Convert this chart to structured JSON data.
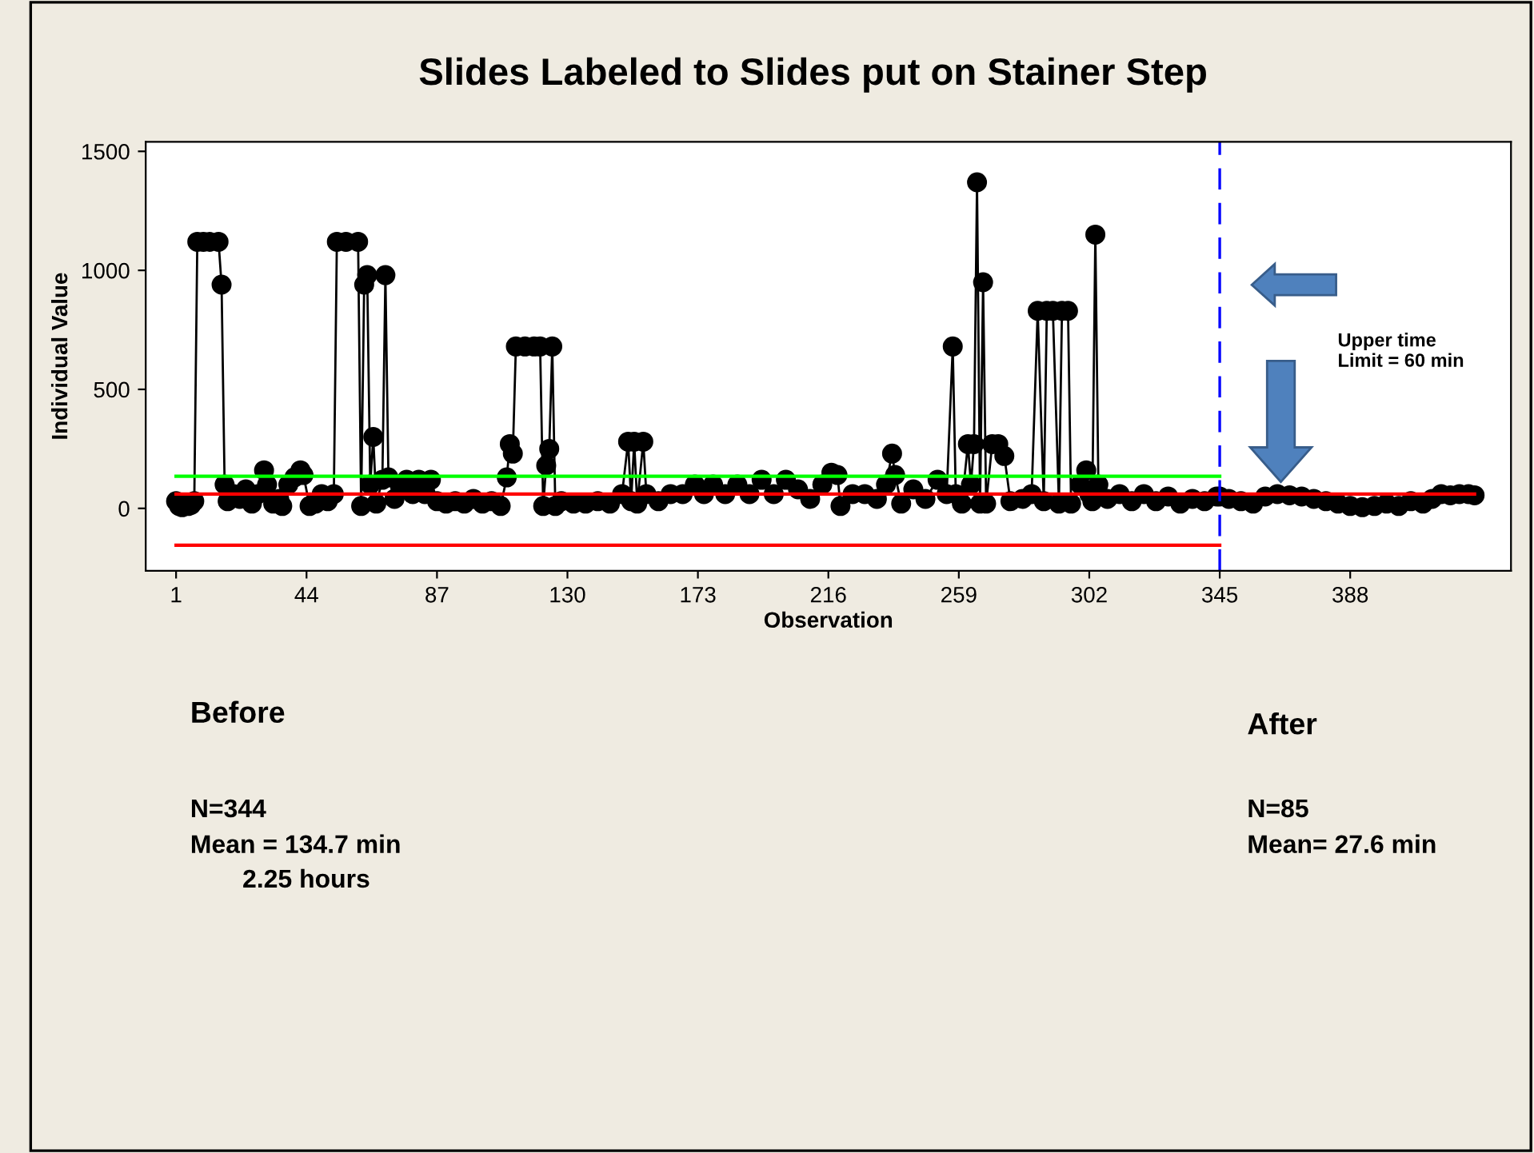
{
  "chart_data": {
    "type": "line",
    "title": "Slides Labeled to Slides put on Stainer Step",
    "xlabel": "Observation",
    "ylabel": "Individual Value",
    "xlim": [
      -9,
      441
    ],
    "ylim": [
      -262,
      1540
    ],
    "xticks": [
      1,
      44,
      87,
      130,
      173,
      216,
      259,
      302,
      345,
      388
    ],
    "yticks": [
      0,
      500,
      1000,
      1500
    ],
    "grid": false,
    "series": [
      {
        "color": "#000000",
        "marker": "circle",
        "x": [
          1,
          2,
          3,
          4,
          5,
          6,
          7,
          8,
          10,
          12,
          15,
          16,
          17,
          18,
          20,
          22,
          24,
          26,
          28,
          30,
          31,
          33,
          35,
          36,
          38,
          40,
          42,
          43,
          45,
          47,
          49,
          51,
          53,
          54,
          57,
          61,
          62,
          63,
          64,
          65,
          66,
          67,
          69,
          70,
          71,
          73,
          75,
          77,
          79,
          81,
          83,
          85,
          87,
          90,
          93,
          96,
          99,
          102,
          105,
          108,
          110,
          111,
          112,
          113,
          116,
          119,
          121,
          122,
          123,
          124,
          125,
          126,
          128,
          132,
          136,
          140,
          144,
          148,
          150,
          151,
          152,
          153,
          155,
          156,
          160,
          164,
          168,
          172,
          175,
          178,
          182,
          186,
          190,
          194,
          198,
          202,
          206,
          210,
          214,
          217,
          219,
          220,
          224,
          228,
          232,
          235,
          237,
          238,
          240,
          244,
          248,
          252,
          255,
          257,
          258,
          260,
          262,
          263,
          264,
          265,
          266,
          267,
          268,
          270,
          272,
          274,
          276,
          280,
          283,
          285,
          287,
          288,
          290,
          292,
          293,
          295,
          296,
          299,
          301,
          302,
          303,
          304,
          305,
          308,
          312,
          316,
          320,
          324,
          328,
          332,
          336,
          340,
          344,
          345,
          348,
          352,
          356,
          360,
          364,
          368,
          372,
          376,
          380,
          384,
          388,
          392,
          396,
          400,
          404,
          408,
          412,
          415,
          418,
          421,
          424,
          427,
          429
        ],
        "values": [
          30,
          10,
          5,
          20,
          10,
          15,
          30,
          1120,
          1120,
          1120,
          1120,
          940,
          100,
          30,
          60,
          40,
          80,
          20,
          60,
          160,
          100,
          20,
          40,
          10,
          100,
          130,
          160,
          140,
          10,
          20,
          60,
          30,
          60,
          1120,
          1120,
          1120,
          10,
          940,
          980,
          100,
          300,
          20,
          120,
          980,
          130,
          40,
          80,
          120,
          60,
          120,
          60,
          120,
          30,
          20,
          30,
          20,
          40,
          20,
          30,
          10,
          130,
          270,
          230,
          680,
          680,
          680,
          680,
          10,
          180,
          250,
          680,
          10,
          30,
          20,
          20,
          30,
          20,
          60,
          280,
          30,
          280,
          20,
          280,
          60,
          30,
          60,
          60,
          100,
          60,
          100,
          60,
          100,
          60,
          120,
          60,
          120,
          80,
          40,
          100,
          150,
          140,
          10,
          60,
          60,
          40,
          100,
          230,
          140,
          20,
          80,
          40,
          120,
          60,
          680,
          60,
          20,
          270,
          100,
          270,
          1370,
          20,
          950,
          20,
          270,
          270,
          220,
          30,
          40,
          60,
          830,
          30,
          830,
          830,
          20,
          830,
          830,
          20,
          100,
          160,
          60,
          30,
          1150,
          100,
          40,
          60,
          30,
          60,
          30,
          50,
          20,
          40,
          30,
          50,
          50,
          40,
          30,
          20,
          50,
          60,
          55,
          50,
          40,
          30,
          20,
          10,
          5,
          10,
          20,
          10,
          30,
          20,
          40,
          60,
          55,
          60,
          60,
          55
        ]
      },
      {
        "color": "#00ff00",
        "marker": "none",
        "x": [
          1,
          345
        ],
        "values": [
          135,
          135
        ]
      },
      {
        "color": "#ff0000",
        "marker": "none",
        "x": [
          1,
          429
        ],
        "values": [
          60,
          60
        ]
      },
      {
        "color": "#ff0000",
        "marker": "none",
        "x": [
          1,
          345
        ],
        "values": [
          -155,
          -155
        ]
      }
    ],
    "ref_lines": [
      {
        "axis": "x",
        "value": 345,
        "color": "#0000ff",
        "line_style": "dashed"
      }
    ],
    "annotations": [
      "Before",
      "N=344",
      "Mean = 134.7 min",
      "2.25 hours",
      "After",
      "N=85",
      "Mean= 27.6 min",
      "Upper time\nLimit = 60 min"
    ]
  }
}
